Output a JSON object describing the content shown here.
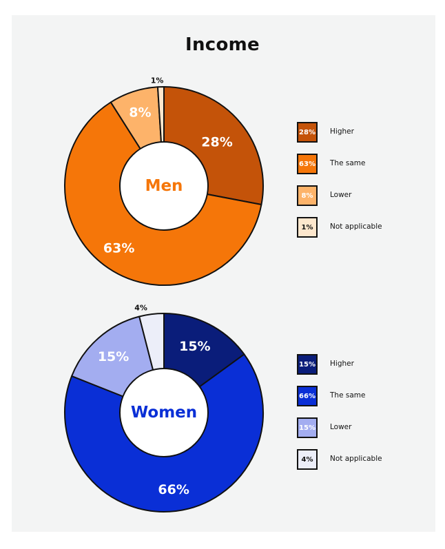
{
  "title": "Income",
  "chart_data": [
    {
      "type": "pie",
      "center_label": "Men",
      "categories": [
        "Higher",
        "The same",
        "Lower",
        "Not applicable"
      ],
      "values": [
        28,
        63,
        8,
        1
      ],
      "labels": [
        "28%",
        "63%",
        "8%",
        "1%"
      ],
      "colors": [
        "#c45309",
        "#f57609",
        "#fdb36a",
        "#fde7cd"
      ],
      "label_colors": [
        "#ffffff",
        "#ffffff",
        "#ffffff",
        "#111111"
      ],
      "center_color": "#f57609",
      "legend_position": "right"
    },
    {
      "type": "pie",
      "center_label": "Women",
      "categories": [
        "Higher",
        "The same",
        "Lower",
        "Not applicable"
      ],
      "values": [
        15,
        66,
        15,
        4
      ],
      "labels": [
        "15%",
        "66%",
        "15%",
        "4%"
      ],
      "colors": [
        "#0a1d7a",
        "#0a2fd6",
        "#a3adf0",
        "#eceef9"
      ],
      "label_colors": [
        "#ffffff",
        "#ffffff",
        "#ffffff",
        "#111111"
      ],
      "center_color": "#0a2fd6",
      "legend_position": "right"
    }
  ]
}
